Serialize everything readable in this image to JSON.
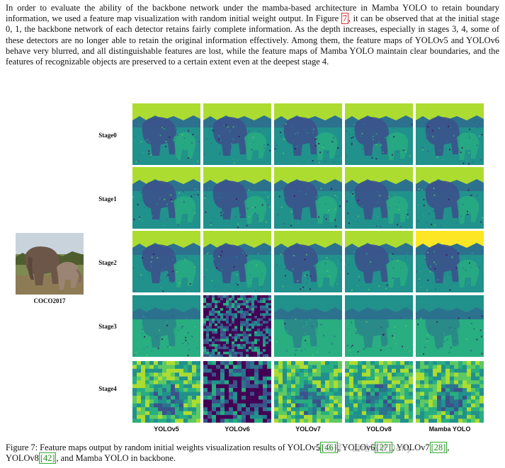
{
  "intro": {
    "text_before_ref": "In order to evaluate the ability of the backbone network under the mamba-based architecture in Mamba YOLO to retain boundary information, we used a feature map visualization with random initial weight output. In Figure ",
    "fig_ref": "7",
    "text_after_ref": ", it can be observed that at the initial stage 0, 1, the backbone network of each detector retains fairly complete information. As the depth increases, especially in stages 3, 4, some of these detectors are no longer able to retain the original information effectively. Among them, the feature maps of YOLOv5 and YOLOv6 behave very blurred, and all distinguishable features are lost, while the feature maps of Mamba YOLO maintain clear boundaries, and the features of recognizable objects are preserved to a certain extent even at the deepest stage 4."
  },
  "figure": {
    "original_label": "COCO2017",
    "stages": [
      "Stage0",
      "Stage1",
      "Stage2",
      "Stage3",
      "Stage4"
    ],
    "models": [
      "YOLOv5",
      "YOLOv6",
      "YOLOv7",
      "YOLOv8",
      "Mamba YOLO"
    ]
  },
  "caption": {
    "prefix": "Figure 7: Feature maps output by random initial weights visualization results of YOLOv5",
    "ref1": "[46]",
    "mid1": ", YOLOv6",
    "ref2": "[27]",
    "mid2": ", YOLOv7",
    "ref3": "[28]",
    "mid3": ", YOLOv8",
    "ref4": "[42]",
    "suffix": ", and Mamba YOLO in backbone."
  },
  "watermark": "公众号 · 自动驾驶Daily",
  "colors": {
    "viridis_dark": "#440154",
    "viridis_mid": "#21918c",
    "viridis_green": "#5ec962",
    "viridis_yellow": "#fde725",
    "ref_red": "#c8102e",
    "ref_green": "#1a8a1a"
  }
}
